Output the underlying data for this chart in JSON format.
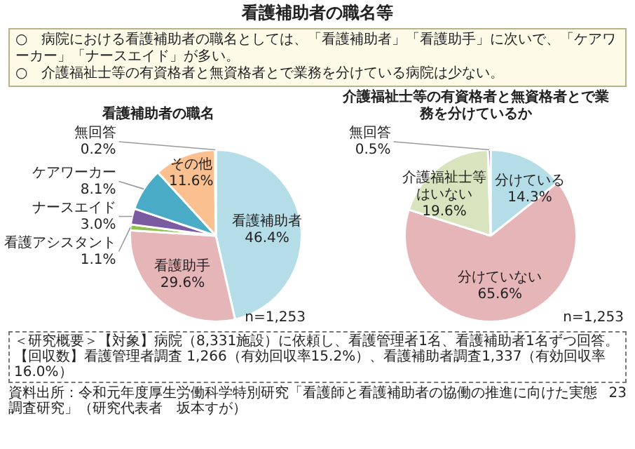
{
  "chart_data": [
    {
      "type": "other",
      "title": "看護補助者の職名等",
      "annotations": [
        "○　病院における看護補助者の職名としては、「看護補助者」「看護助手」に次いで、「ケアワーカー」「ナースエイド」が多い。",
        "○　介護福祉士等の有資格者と無資格者とで業務を分けている病院は少ない。"
      ]
    },
    {
      "type": "pie",
      "title": "看護補助者の職名",
      "categories": [
        "看護補助者",
        "看護助手",
        "看護アシスタント",
        "ナースエイド",
        "ケアワーカー",
        "その他",
        "無回答"
      ],
      "values": [
        46.4,
        29.6,
        1.1,
        3.0,
        8.1,
        11.6,
        0.2
      ],
      "colors": [
        "#b4dde8",
        "#e6b5b8",
        "#8fc04f",
        "#7a5aa0",
        "#4aabc6",
        "#fac08f",
        "#f4f4f4"
      ],
      "value_labels": [
        "46.4%",
        "29.6%",
        "1.1%",
        "3.0%",
        "8.1%",
        "11.6%",
        "0.2%"
      ],
      "annotations": [
        "n=1,253"
      ],
      "legend": false
    },
    {
      "type": "pie",
      "title": "介護福祉士等の有資格者と無資格者とで業務を分けているか",
      "categories": [
        "分けている",
        "分けていない",
        "介護福祉士等はいない",
        "無回答"
      ],
      "values": [
        14.3,
        65.6,
        19.6,
        0.5
      ],
      "colors": [
        "#b4dde8",
        "#e6b5b8",
        "#d7e4bd",
        "#7030a0"
      ],
      "value_labels": [
        "14.3%",
        "65.6%",
        "19.6%",
        "0.5%"
      ],
      "annotations": [
        "n=1,253"
      ],
      "legend": false
    },
    {
      "type": "other",
      "annotations": [
        "＜研究概要＞【対象】病院（8,331施設）に依頼し、看護管理者1名、看護補助者1名ずつ回答。【回収数】看護管理者調査 1,266（有効回収率15.2%）、看護補助者調査1,337（有効回収率16.0%）",
        "資料出所：令和元年度厚生労働科学特別研究「看護師と看護補助者の協働の推進に向けた実態調査研究」（研究代表者　坂本すが）",
        "23"
      ]
    }
  ]
}
